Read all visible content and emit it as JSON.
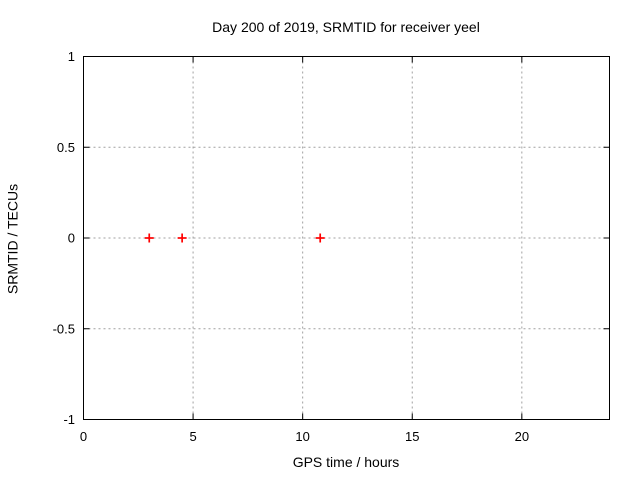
{
  "chart_data": {
    "type": "scatter",
    "title": "Day 200 of 2019, SRMTID for receiver yeel",
    "xlabel": "GPS time / hours",
    "ylabel": "SRMTID / TECUs",
    "xlim": [
      0,
      24
    ],
    "ylim": [
      -1,
      1
    ],
    "xticks": [
      0,
      5,
      10,
      15,
      20
    ],
    "yticks": [
      1,
      0.5,
      0,
      -0.5,
      -1
    ],
    "grid": true,
    "grid_style": "dashed",
    "legend_position": "none",
    "colors": {
      "marker": "#ff0000",
      "grid": "#a0a0a0",
      "axis": "#000000",
      "background": "#ffffff",
      "text": "#000000"
    },
    "series": [
      {
        "name": "SRMTID",
        "marker": "plus",
        "color": "#ff0000",
        "points": [
          {
            "x": 3.0,
            "y": 0.0
          },
          {
            "x": 4.5,
            "y": 0.0
          },
          {
            "x": 10.8,
            "y": 0.0
          }
        ]
      }
    ]
  }
}
